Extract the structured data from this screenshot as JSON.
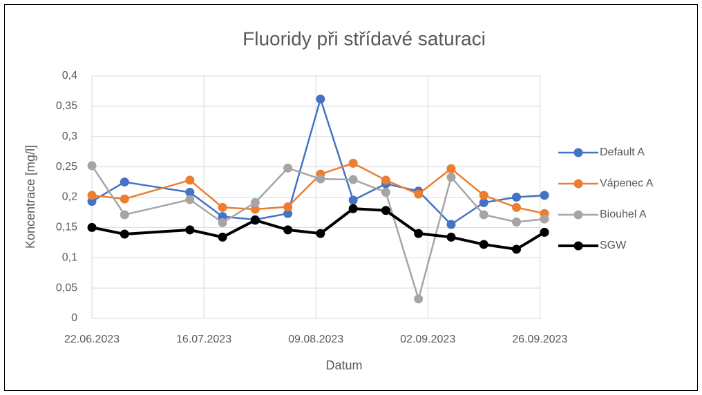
{
  "chart_data": {
    "type": "line",
    "title": "Fluoridy při střídavé saturaci",
    "x_label": "Datum",
    "y_label": "Koncentrace [mg/l]",
    "x": [
      "22.06.2023",
      "29.06.2023",
      "13.07.2023",
      "20.07.2023",
      "27.07.2023",
      "03.08.2023",
      "10.08.2023",
      "17.08.2023",
      "24.08.2023",
      "31.08.2023",
      "07.09.2023",
      "14.09.2023",
      "21.09.2023",
      "27.09.2023"
    ],
    "series": [
      {
        "name": "Default A",
        "color": "#4472c4",
        "values": [
          0.193,
          0.225,
          0.208,
          0.168,
          0.163,
          0.173,
          0.362,
          0.195,
          0.222,
          0.21,
          0.155,
          0.191,
          0.2,
          0.203
        ]
      },
      {
        "name": "Vápenec A",
        "color": "#ed7d31",
        "values": [
          0.203,
          0.197,
          0.228,
          0.183,
          0.18,
          0.184,
          0.238,
          0.256,
          0.228,
          0.205,
          0.247,
          0.203,
          0.183,
          0.173
        ]
      },
      {
        "name": "Biouhel A",
        "color": "#a5a5a5",
        "values": [
          0.252,
          0.171,
          0.196,
          0.158,
          0.191,
          0.248,
          0.23,
          0.229,
          0.208,
          0.032,
          0.233,
          0.171,
          0.159,
          0.164
        ]
      },
      {
        "name": "SGW",
        "color": "#000000",
        "values": [
          0.15,
          0.139,
          0.146,
          0.134,
          0.162,
          0.146,
          0.14,
          0.181,
          0.178,
          0.14,
          0.134,
          0.122,
          0.114,
          0.142
        ]
      }
    ],
    "xlim": [
      "22.06.2023",
      "27.09.2023"
    ],
    "xticks": [
      "22.06.2023",
      "16.07.2023",
      "09.08.2023",
      "02.09.2023",
      "26.09.2023"
    ],
    "ylim": [
      0,
      0.4
    ],
    "yticks": [
      0,
      {
        "value": 0.05,
        "label": "0,05"
      },
      {
        "value": 0.1,
        "label": "0,1"
      },
      {
        "value": 0.15,
        "label": "0,15"
      },
      {
        "value": 0.2,
        "label": "0,2"
      },
      {
        "value": 0.25,
        "label": "0,25"
      },
      {
        "value": 0.3,
        "label": "0,3"
      },
      {
        "value": 0.35,
        "label": "0,35"
      },
      {
        "value": 0.4,
        "label": "0,4"
      }
    ],
    "grid": true,
    "legend": "right"
  }
}
